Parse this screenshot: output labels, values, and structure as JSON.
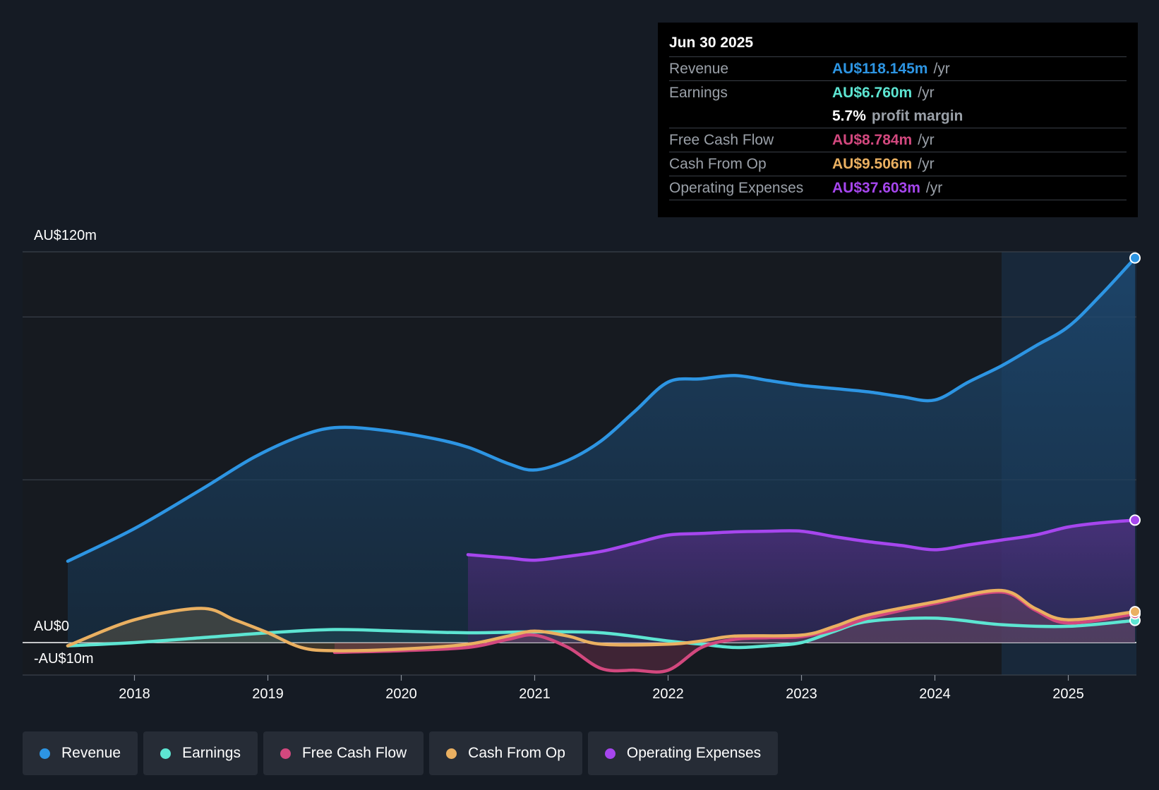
{
  "tooltip": {
    "date": "Jun 30 2025",
    "rows": [
      {
        "label": "Revenue",
        "value": "AU$118.145m",
        "unit": "/yr",
        "color": "#2d95e3"
      },
      {
        "label": "Earnings",
        "value": "AU$6.760m",
        "unit": "/yr",
        "color": "#5de5d2"
      },
      {
        "label": "",
        "value": "5.7%",
        "unit": "profit margin",
        "color": "#ffffff"
      },
      {
        "label": "Free Cash Flow",
        "value": "AU$8.784m",
        "unit": "/yr",
        "color": "#d2487e"
      },
      {
        "label": "Cash From Op",
        "value": "AU$9.506m",
        "unit": "/yr",
        "color": "#eab061"
      },
      {
        "label": "Operating Expenses",
        "value": "AU$37.603m",
        "unit": "/yr",
        "color": "#a646ee"
      }
    ]
  },
  "legend": [
    {
      "label": "Revenue",
      "color": "#2d95e3"
    },
    {
      "label": "Earnings",
      "color": "#5de5d2"
    },
    {
      "label": "Free Cash Flow",
      "color": "#d2487e"
    },
    {
      "label": "Cash From Op",
      "color": "#eab061"
    },
    {
      "label": "Operating Expenses",
      "color": "#a646ee"
    }
  ],
  "chart_data": {
    "type": "area",
    "title": "",
    "xlabel": "",
    "ylabel": "",
    "ylim": [
      -10,
      120
    ],
    "y_axis_labels": [
      "AU$120m",
      "AU$0",
      "-AU$10m"
    ],
    "x_ticks": [
      2018,
      2019,
      2020,
      2021,
      2022,
      2023,
      2024,
      2025
    ],
    "x_tick_labels": [
      "2018",
      "2019",
      "2020",
      "2021",
      "2022",
      "2023",
      "2024",
      "2025"
    ],
    "xlim": [
      2017.5,
      2025.5
    ],
    "highlight_start": 2024.5,
    "series": [
      {
        "name": "Revenue",
        "color": "#2d95e3",
        "x": [
          2017.5,
          2018.0,
          2018.5,
          2018.9,
          2019.25,
          2019.5,
          2019.8,
          2020.2,
          2020.5,
          2020.8,
          2021.0,
          2021.25,
          2021.5,
          2021.75,
          2022.0,
          2022.25,
          2022.5,
          2022.75,
          2023.0,
          2023.25,
          2023.5,
          2023.75,
          2024.0,
          2024.25,
          2024.5,
          2024.75,
          2025.0,
          2025.25,
          2025.5
        ],
        "values": [
          25.0,
          35.0,
          47.0,
          57.0,
          63.5,
          66.0,
          65.5,
          63.0,
          60.0,
          55.0,
          53.0,
          56.0,
          62.0,
          71.0,
          80.0,
          81.0,
          82.0,
          80.5,
          79.0,
          78.0,
          77.0,
          75.5,
          74.5,
          80.0,
          85.0,
          91.0,
          97.0,
          107.0,
          118.1
        ]
      },
      {
        "name": "Earnings",
        "color": "#5de5d2",
        "x": [
          2017.5,
          2018.0,
          2018.5,
          2019.0,
          2019.5,
          2020.0,
          2020.5,
          2021.0,
          2021.5,
          2022.0,
          2022.25,
          2022.5,
          2022.75,
          2023.0,
          2023.25,
          2023.5,
          2024.0,
          2024.5,
          2025.0,
          2025.5
        ],
        "values": [
          -1.0,
          0.0,
          1.5,
          3.0,
          4.0,
          3.5,
          3.0,
          3.3,
          3.0,
          0.5,
          -0.5,
          -1.5,
          -1.0,
          0.0,
          3.5,
          6.5,
          7.5,
          5.5,
          5.0,
          6.8
        ]
      },
      {
        "name": "Free Cash Flow",
        "color": "#d2487e",
        "x": [
          2019.5,
          2020.0,
          2020.5,
          2020.8,
          2021.0,
          2021.25,
          2021.5,
          2021.75,
          2022.0,
          2022.25,
          2022.5,
          2022.75,
          2023.0,
          2023.25,
          2023.5,
          2024.0,
          2024.5,
          2024.75,
          2025.0,
          2025.5
        ],
        "values": [
          -3.0,
          -2.5,
          -1.5,
          1.0,
          2.3,
          -1.5,
          -8.0,
          -8.5,
          -8.5,
          -1.5,
          1.0,
          1.5,
          1.8,
          4.0,
          7.5,
          12.0,
          15.5,
          10.0,
          6.0,
          8.8
        ]
      },
      {
        "name": "Cash From Op",
        "color": "#eab061",
        "x": [
          2017.5,
          2018.0,
          2018.5,
          2018.75,
          2019.0,
          2019.25,
          2019.5,
          2020.0,
          2020.5,
          2020.8,
          2021.0,
          2021.25,
          2021.5,
          2022.0,
          2022.25,
          2022.5,
          2023.0,
          2023.25,
          2023.5,
          2024.0,
          2024.5,
          2024.75,
          2025.0,
          2025.5
        ],
        "values": [
          -1.0,
          7.0,
          10.5,
          7.0,
          3.0,
          -1.5,
          -2.5,
          -2.0,
          -0.5,
          2.0,
          3.5,
          2.0,
          -0.5,
          -0.5,
          0.5,
          2.0,
          2.3,
          5.0,
          8.5,
          12.5,
          16.0,
          10.5,
          7.0,
          9.5
        ]
      },
      {
        "name": "Operating Expenses",
        "color": "#a646ee",
        "x": [
          2020.5,
          2020.8,
          2021.0,
          2021.25,
          2021.5,
          2021.75,
          2022.0,
          2022.25,
          2022.5,
          2022.75,
          2023.0,
          2023.25,
          2023.5,
          2023.75,
          2024.0,
          2024.25,
          2024.5,
          2024.75,
          2025.0,
          2025.25,
          2025.5
        ],
        "values": [
          27.0,
          26.0,
          25.3,
          26.5,
          28.0,
          30.5,
          33.0,
          33.5,
          34.0,
          34.2,
          34.2,
          32.5,
          31.0,
          29.8,
          28.5,
          30.0,
          31.5,
          33.0,
          35.5,
          36.8,
          37.6
        ]
      }
    ]
  }
}
